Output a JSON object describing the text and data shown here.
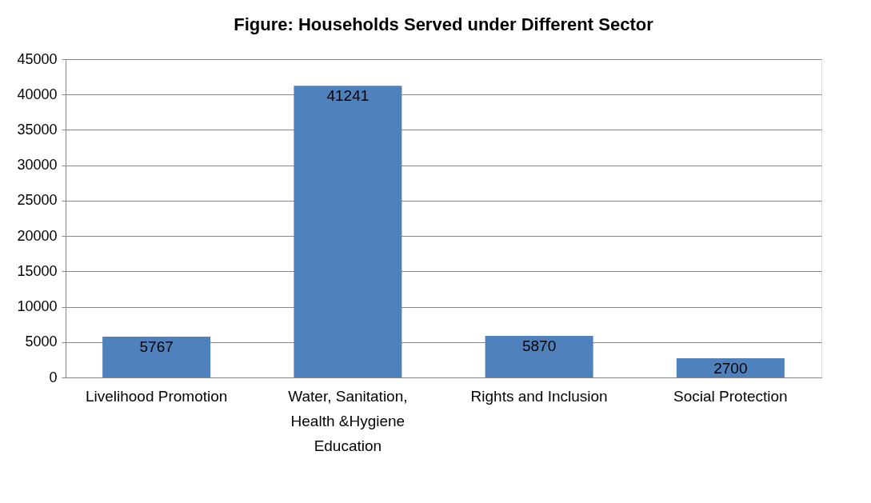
{
  "chart_data": {
    "type": "bar",
    "title": "Figure: Households Served under Different Sector",
    "categories": [
      "Livelihood Promotion",
      "Water, Sanitation, Health &Hygiene Education",
      "Rights and Inclusion",
      "Social Protection"
    ],
    "values": [
      5767,
      41241,
      5870,
      2700
    ],
    "color": "#4f81bd",
    "ylim": [
      0,
      45000
    ],
    "yticks": [
      0,
      5000,
      10000,
      15000,
      20000,
      25000,
      30000,
      35000,
      40000,
      45000
    ],
    "grid": "y",
    "data_labels": true
  }
}
